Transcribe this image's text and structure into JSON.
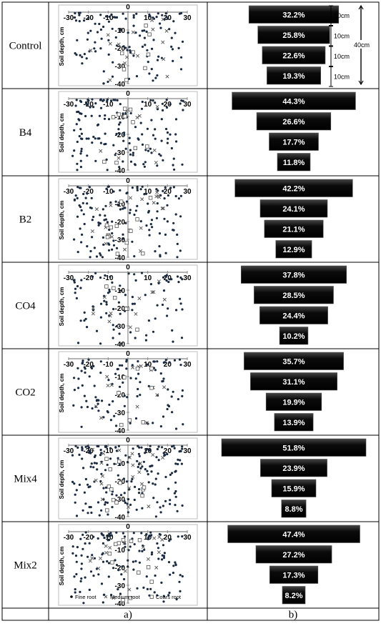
{
  "treatments": [
    "Control",
    "B4",
    "B2",
    "CO4",
    "CO2",
    "Mix4",
    "Mix2"
  ],
  "footer": {
    "col_a": "a)",
    "col_b": "b)"
  },
  "colors": {
    "bar_fill": "#000000",
    "bar_text": "#ffffff",
    "point": "#1a2a40",
    "x_marker": "#555555",
    "square_marker": "#555555"
  },
  "chart_data": {
    "type": "scatter",
    "y_axis_label": "Soil depth, cm",
    "x_ticks": [
      "-30",
      "-20",
      "-10",
      "0",
      "10",
      "20",
      "30"
    ],
    "y_ticks": [
      "-10",
      "-20",
      "-30",
      "-40"
    ],
    "origin_label": "0",
    "legend": [
      "Fine root",
      "Medium root",
      "Coars root"
    ],
    "xlim": [
      -30,
      30
    ],
    "ylim": [
      -40,
      0
    ],
    "panels": [
      {
        "treatment": "Control",
        "fine_n": 115,
        "medium_n": 16,
        "coarse_n": 8,
        "seed": 11
      },
      {
        "treatment": "B4",
        "fine_n": 150,
        "medium_n": 8,
        "coarse_n": 10,
        "seed": 23
      },
      {
        "treatment": "B2",
        "fine_n": 140,
        "medium_n": 18,
        "coarse_n": 14,
        "seed": 37
      },
      {
        "treatment": "CO4",
        "fine_n": 90,
        "medium_n": 14,
        "coarse_n": 6,
        "seed": 41
      },
      {
        "treatment": "CO2",
        "fine_n": 110,
        "medium_n": 14,
        "coarse_n": 8,
        "seed": 53
      },
      {
        "treatment": "Mix4",
        "fine_n": 180,
        "medium_n": 20,
        "coarse_n": 12,
        "seed": 67
      },
      {
        "treatment": "Mix2",
        "fine_n": 140,
        "medium_n": 18,
        "coarse_n": 12,
        "seed": 79
      }
    ]
  },
  "distribution": {
    "type": "bar",
    "layer_labels": [
      "10cm",
      "10cm",
      "10cm",
      "10cm"
    ],
    "total_label": "40cm",
    "rows": [
      {
        "treatment": "Control",
        "values": [
          32.2,
          25.8,
          22.6,
          19.3
        ],
        "labels": [
          "32.2%",
          "25.8%",
          "22.6%",
          "19.3%"
        ]
      },
      {
        "treatment": "B4",
        "values": [
          44.3,
          26.6,
          17.7,
          11.8
        ],
        "labels": [
          "44.3%",
          "26.6%",
          "17.7%",
          "11.8%"
        ]
      },
      {
        "treatment": "B2",
        "values": [
          42.2,
          24.1,
          21.1,
          12.9
        ],
        "labels": [
          "42.2%",
          "24.1%",
          "21.1%",
          "12.9%"
        ]
      },
      {
        "treatment": "CO4",
        "values": [
          37.8,
          28.5,
          24.4,
          10.2
        ],
        "labels": [
          "37.8%",
          "28.5%",
          "24.4%",
          "10.2%"
        ]
      },
      {
        "treatment": "CO2",
        "values": [
          35.7,
          31.1,
          19.9,
          13.9
        ],
        "labels": [
          "35.7%",
          "31.1%",
          "19.9%",
          "13.9%"
        ]
      },
      {
        "treatment": "Mix4",
        "values": [
          51.8,
          23.9,
          15.9,
          8.8
        ],
        "labels": [
          "51.8%",
          "23.9%",
          "15.9%",
          "8.8%"
        ]
      },
      {
        "treatment": "Mix2",
        "values": [
          47.4,
          27.2,
          17.3,
          8.2
        ],
        "labels": [
          "47.4%",
          "27.2%",
          "17.3%",
          "8.2%"
        ]
      }
    ]
  }
}
